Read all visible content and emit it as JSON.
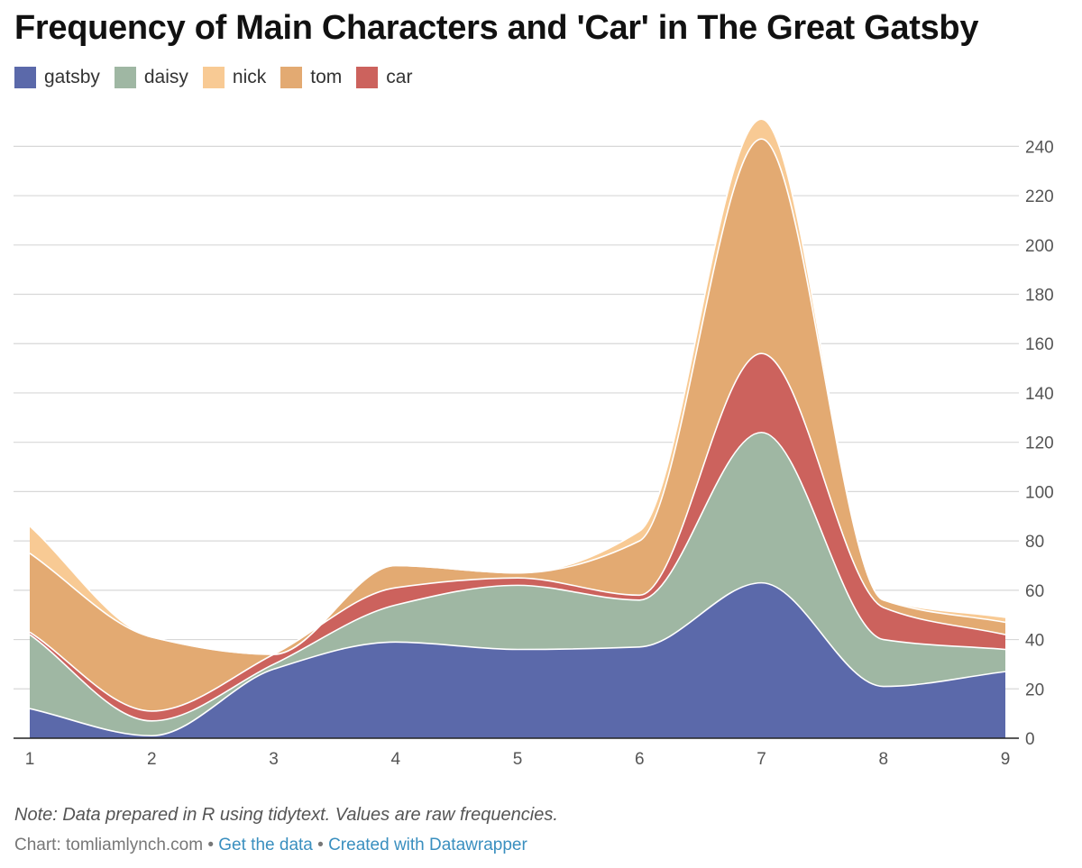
{
  "title": "Frequency of Main Characters and 'Car' in The Great Gatsby",
  "note": "Note: Data prepared in R using tidytext. Values are raw frequencies.",
  "credit": {
    "prefix": "Chart: tomliamlynch.com",
    "sep": "•",
    "link1": "Get the data",
    "link2": "Created with Datawrapper"
  },
  "chart_data": {
    "type": "area",
    "stacked": true,
    "x": [
      1,
      2,
      3,
      4,
      5,
      6,
      7,
      8,
      9
    ],
    "ylim": [
      0,
      250
    ],
    "yticks": [
      0,
      20,
      40,
      60,
      80,
      100,
      120,
      140,
      160,
      180,
      200,
      220,
      240
    ],
    "y_axis_position": "right",
    "grid": true,
    "legend_position": "top-left",
    "series": [
      {
        "name": "gatsby",
        "color": "#5b69aa",
        "values": [
          12,
          1,
          28,
          39,
          36,
          37,
          63,
          21,
          27
        ]
      },
      {
        "name": "daisy",
        "color": "#9fb7a3",
        "values": [
          30,
          6,
          2,
          15,
          26,
          19,
          61,
          19,
          9
        ]
      },
      {
        "name": "car",
        "color": "#cc625d",
        "values": [
          1,
          4,
          4,
          7,
          3,
          2,
          32,
          13,
          6
        ]
      },
      {
        "name": "tom",
        "color": "#e3aa72",
        "values": [
          32,
          30,
          0,
          9,
          2,
          22,
          87,
          3,
          5
        ]
      },
      {
        "name": "nick",
        "color": "#f8ca94",
        "values": [
          11,
          0,
          0,
          0,
          0,
          4,
          8,
          0,
          2
        ]
      }
    ],
    "legend_order": [
      "gatsby",
      "daisy",
      "nick",
      "tom",
      "car"
    ]
  }
}
